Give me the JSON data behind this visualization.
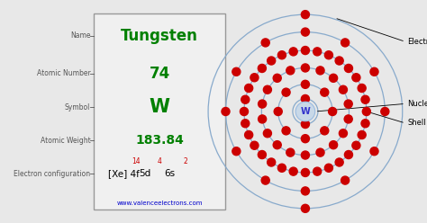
{
  "bg_color": "#e8e8e8",
  "box_bg": "#f0f0f0",
  "box_border": "#999999",
  "title": "Tungsten",
  "title_color": "#008000",
  "atomic_number": "74",
  "symbol": "W",
  "atomic_weight": "183.84",
  "green_color": "#008000",
  "blue_color": "#3333cc",
  "red_color": "#cc0000",
  "black_color": "#000000",
  "label_color": "#555555",
  "website": "www.valenceelectrons.com",
  "website_color": "#0000cc",
  "nucleus_color": "#c8d8e8",
  "electron_color": "#cc0000",
  "shell_color": "#88aacc",
  "electrons_per_shell": [
    2,
    8,
    18,
    32,
    12,
    2
  ],
  "figwidth": 4.74,
  "figheight": 2.48,
  "dpi": 100
}
